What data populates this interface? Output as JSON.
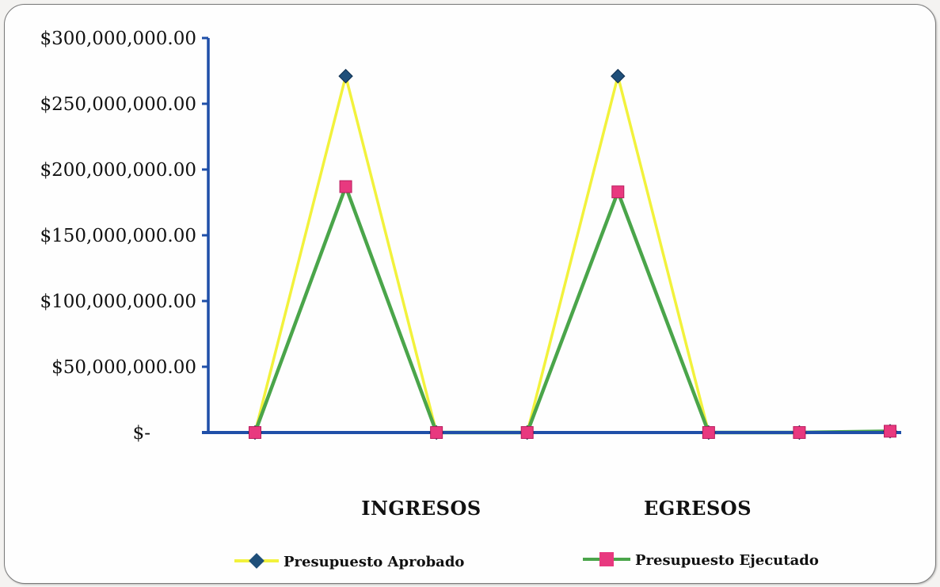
{
  "chart_data": {
    "type": "line",
    "title": "",
    "xlabel": "",
    "ylabel": "",
    "ylim": [
      0,
      300000000
    ],
    "y_ticks": [
      {
        "value": 300000000,
        "label": "$300,000,000.00"
      },
      {
        "value": 250000000,
        "label": "$250,000,000.00"
      },
      {
        "value": 200000000,
        "label": "$200,000,000.00"
      },
      {
        "value": 150000000,
        "label": "$150,000,000.00"
      },
      {
        "value": 100000000,
        "label": "$100,000,000.00"
      },
      {
        "value": 50000000,
        "label": "$50,000,000.00"
      },
      {
        "value": 0,
        "label": "$-"
      }
    ],
    "num_points": 8,
    "category_groups": [
      "INGRESOS",
      "EGRESOS"
    ],
    "grid": false,
    "legend_position": "bottom",
    "series": [
      {
        "name": "Presupuesto Aprobado",
        "line_color": "#f2f23c",
        "marker": "diamond",
        "marker_color": "#1f4f7a",
        "values": [
          0,
          271000000,
          0,
          0,
          271000000,
          0,
          0,
          1000000
        ]
      },
      {
        "name": "Presupuesto Ejecutado",
        "line_color": "#4aa54a",
        "marker": "square",
        "marker_color": "#e8397f",
        "values": [
          0,
          187000000,
          0,
          0,
          183000000,
          0,
          0,
          1000000
        ]
      }
    ],
    "axis_color": "#1f4fa8"
  }
}
